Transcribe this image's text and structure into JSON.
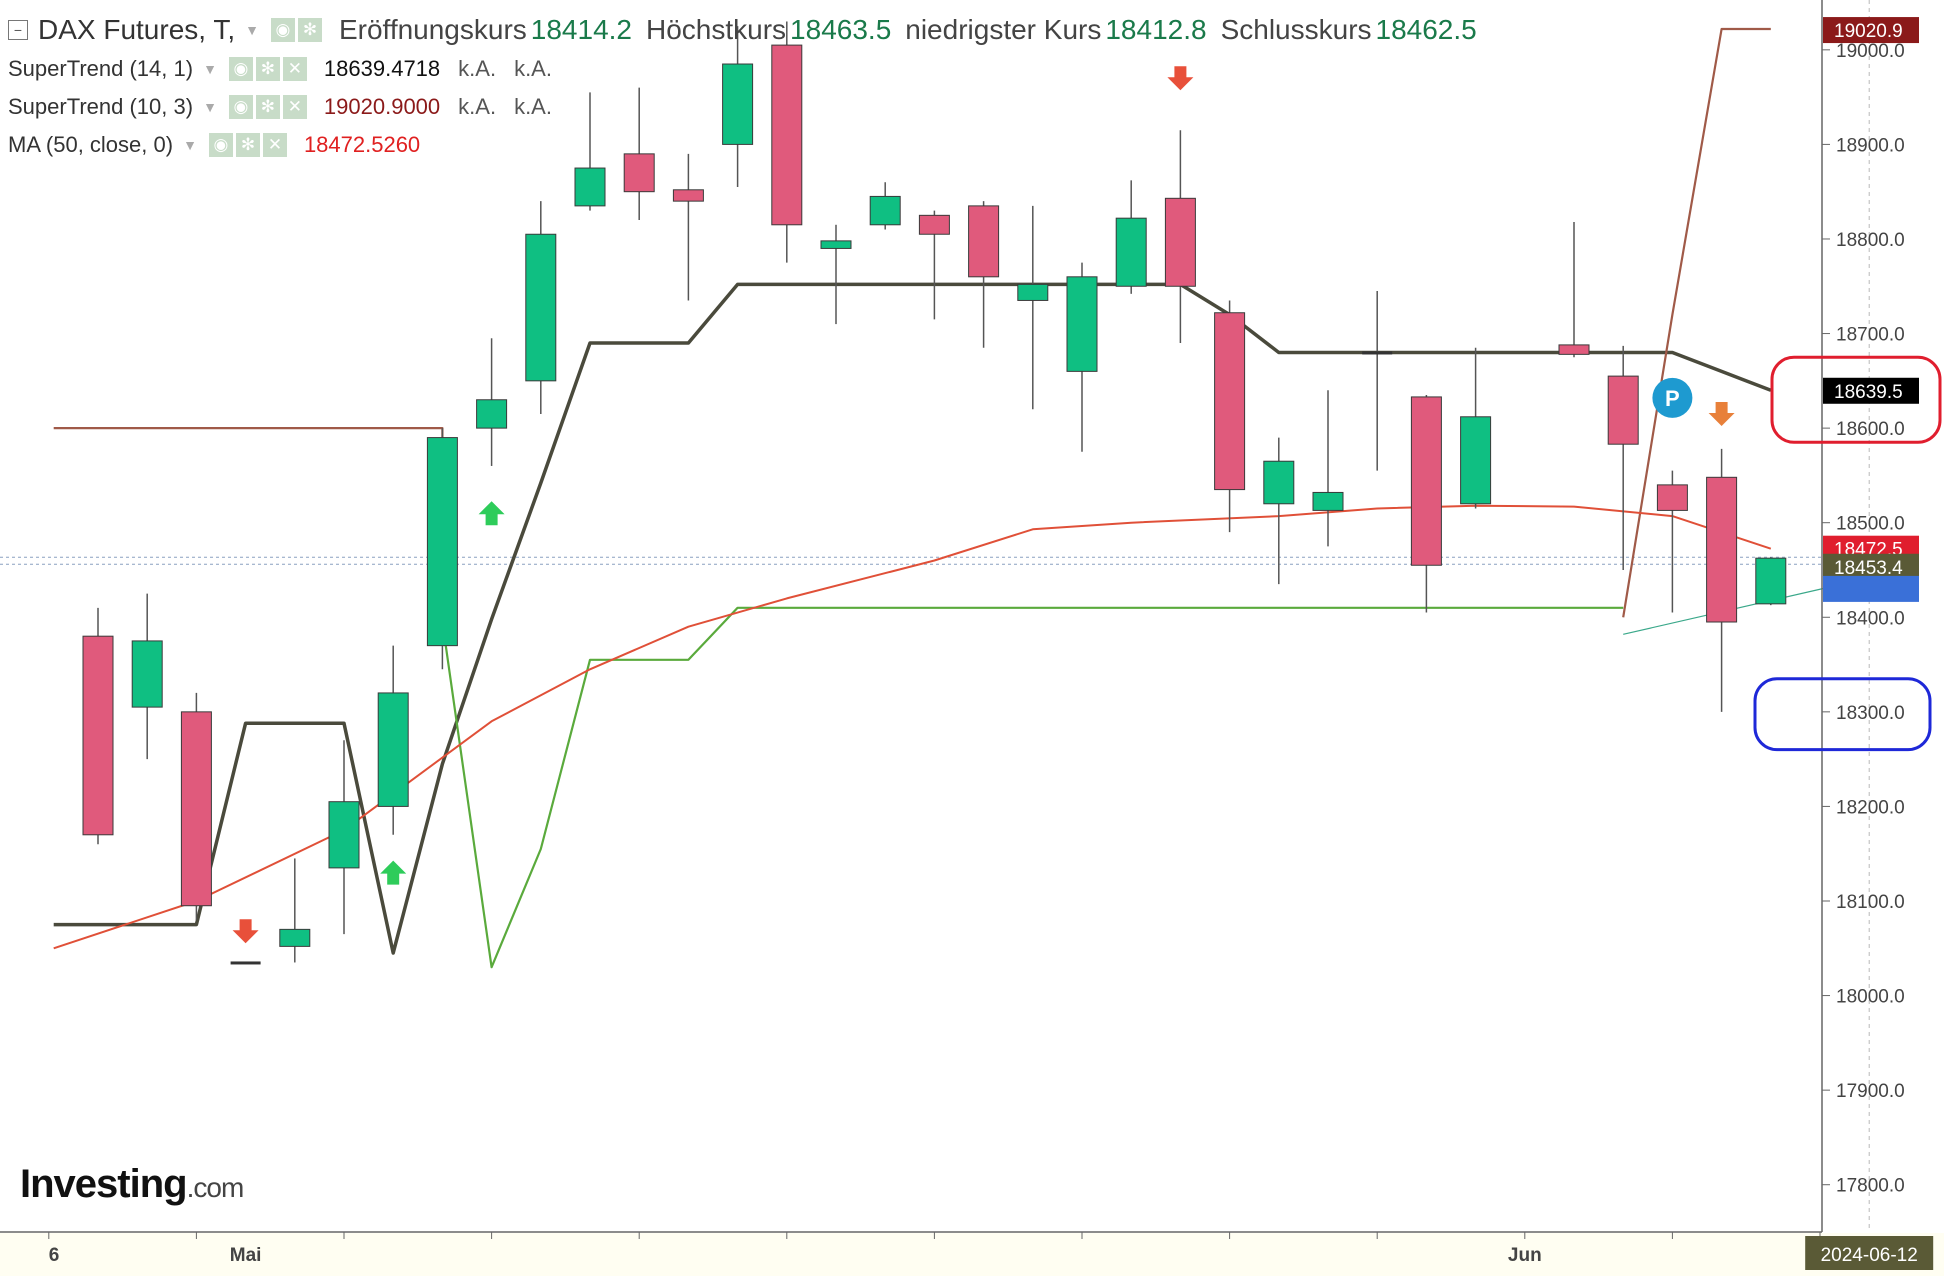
{
  "header": {
    "symbol": "DAX Futures, T,",
    "ohlc": [
      {
        "label": "Eröffnungskurs",
        "value": "18414.2"
      },
      {
        "label": "Höchstkurs",
        "value": "18463.5"
      },
      {
        "label": "niedrigster Kurs",
        "value": "18412.8"
      },
      {
        "label": "Schlusskurs",
        "value": "18462.5"
      }
    ]
  },
  "indicators": [
    {
      "name": "SuperTrend (14, 1)",
      "value": "18639.4718",
      "value_color": "#111111",
      "extra": [
        "k.A.",
        "k.A."
      ]
    },
    {
      "name": "SuperTrend (10, 3)",
      "value": "19020.9000",
      "value_color": "#8b1a1a",
      "extra": [
        "k.A.",
        "k.A."
      ]
    },
    {
      "name": "MA (50, close, 0)",
      "value": "18472.5260",
      "value_color": "#e02020",
      "extra": []
    }
  ],
  "logo": {
    "main": "Investing",
    "suffix": ".com"
  },
  "colors": {
    "up": "#0fbf82",
    "down": "#e05a7c",
    "wick": "#555555",
    "st14": "#4a4a3c",
    "st10_up": "#5aaa3c",
    "st10_down": "#a05a48",
    "ma": "#e05038",
    "annot_red": "#e01e2e",
    "annot_blue": "#1e28d8"
  },
  "chart_data": {
    "type": "candlestick",
    "title": "DAX Futures",
    "y_axis": {
      "min": 17750,
      "max": 19040,
      "position": "right",
      "ticks": [
        "17800.0",
        "17900.0",
        "18000.0",
        "18100.0",
        "18200.0",
        "18300.0",
        "18400.0",
        "18500.0",
        "18600.0",
        "18700.0",
        "18800.0",
        "18900.0",
        "19000.0"
      ]
    },
    "x_axis": {
      "labels": [
        {
          "index": -1,
          "text": "6"
        },
        {
          "index": 3,
          "text": "Mai"
        },
        {
          "index": 29,
          "text": "Jun"
        },
        {
          "index": 36,
          "text": "2024-06-12",
          "highlight": true
        }
      ]
    },
    "candles": [
      {
        "o": 18380,
        "h": 18410,
        "l": 18160,
        "c": 18170
      },
      {
        "o": 18305,
        "h": 18425,
        "l": 18250,
        "c": 18375
      },
      {
        "o": 18300,
        "h": 18320,
        "l": 18080,
        "c": 18095
      },
      {
        "o": 18035,
        "h": 18035,
        "l": 18035,
        "c": 18035
      },
      {
        "o": 18052,
        "h": 18145,
        "l": 18035,
        "c": 18070
      },
      {
        "o": 18135,
        "h": 18270,
        "l": 18065,
        "c": 18205
      },
      {
        "o": 18200,
        "h": 18370,
        "l": 18170,
        "c": 18320
      },
      {
        "o": 18370,
        "h": 18600,
        "l": 18345,
        "c": 18590
      },
      {
        "o": 18600,
        "h": 18695,
        "l": 18560,
        "c": 18630
      },
      {
        "o": 18650,
        "h": 18840,
        "l": 18615,
        "c": 18805
      },
      {
        "o": 18835,
        "h": 18955,
        "l": 18830,
        "c": 18875
      },
      {
        "o": 18890,
        "h": 18960,
        "l": 18820,
        "c": 18850
      },
      {
        "o": 18852,
        "h": 18890,
        "l": 18735,
        "c": 18840
      },
      {
        "o": 18900,
        "h": 19025,
        "l": 18855,
        "c": 18985
      },
      {
        "o": 19005,
        "h": 19030,
        "l": 18775,
        "c": 18815
      },
      {
        "o": 18790,
        "h": 18815,
        "l": 18710,
        "c": 18798
      },
      {
        "o": 18815,
        "h": 18860,
        "l": 18810,
        "c": 18845
      },
      {
        "o": 18825,
        "h": 18830,
        "l": 18715,
        "c": 18805
      },
      {
        "o": 18835,
        "h": 18840,
        "l": 18685,
        "c": 18760
      },
      {
        "o": 18735,
        "h": 18835,
        "l": 18620,
        "c": 18752
      },
      {
        "o": 18660,
        "h": 18775,
        "l": 18575,
        "c": 18760
      },
      {
        "o": 18750,
        "h": 18862,
        "l": 18742,
        "c": 18822
      },
      {
        "o": 18843,
        "h": 18915,
        "l": 18690,
        "c": 18750
      },
      {
        "o": 18722,
        "h": 18735,
        "l": 18490,
        "c": 18535
      },
      {
        "o": 18520,
        "h": 18590,
        "l": 18435,
        "c": 18565
      },
      {
        "o": 18513,
        "h": 18640,
        "l": 18475,
        "c": 18532
      },
      {
        "o": 18680,
        "h": 18745,
        "l": 18555,
        "c": 18680
      },
      {
        "o": 18633,
        "h": 18635,
        "l": 18405,
        "c": 18455
      },
      {
        "o": 18520,
        "h": 18685,
        "l": 18515,
        "c": 18612
      },
      {
        "o": 18688,
        "h": 18818,
        "l": 18675,
        "c": 18678
      },
      {
        "o": 18655,
        "h": 18687,
        "l": 18450,
        "c": 18583
      },
      {
        "o": 18540,
        "h": 18555,
        "l": 18405,
        "c": 18513
      },
      {
        "o": 18548,
        "h": 18578,
        "l": 18300,
        "c": 18395
      },
      {
        "o": 18414.2,
        "h": 18463.5,
        "l": 18412.8,
        "c": 18462.5
      }
    ],
    "candle_start_index": 0,
    "candle_indices": [
      0,
      1,
      2,
      3,
      4,
      5,
      6,
      7,
      8,
      9,
      10,
      11,
      12,
      13,
      14,
      15,
      16,
      17,
      18,
      19,
      20,
      21,
      22,
      23,
      24,
      25,
      26,
      27,
      28,
      30,
      31,
      32,
      33,
      34
    ],
    "series": [
      {
        "name": "SuperTrend (14, 1)",
        "segments": [
          [
            [
              -0.9,
              18075
            ],
            [
              1,
              18075
            ],
            [
              2,
              18075
            ],
            [
              3,
              18288
            ],
            [
              5,
              18288
            ],
            [
              6,
              18045
            ],
            [
              7,
              18245
            ],
            [
              8,
              18398
            ],
            [
              9,
              18542
            ],
            [
              10,
              18690
            ],
            [
              12,
              18690
            ],
            [
              13,
              18752
            ],
            [
              22,
              18752
            ],
            [
              23,
              18720
            ],
            [
              24,
              18680
            ],
            [
              32,
              18680
            ],
            [
              33,
              18660
            ],
            [
              34,
              18640
            ]
          ]
        ]
      },
      {
        "name": "SuperTrend (10, 3) up",
        "segments": [
          [
            [
              7,
              18395
            ],
            [
              8,
              18030
            ],
            [
              9,
              18155
            ],
            [
              10,
              18355
            ],
            [
              12,
              18355
            ],
            [
              13,
              18410
            ],
            [
              31,
              18410
            ]
          ]
        ]
      },
      {
        "name": "SuperTrend (10, 3) down",
        "segments": [
          [
            [
              -0.9,
              18600
            ],
            [
              7,
              18600
            ],
            [
              7,
              18590
            ]
          ],
          [
            [
              31,
              18400
            ],
            [
              32,
              18720
            ],
            [
              33,
              19022
            ],
            [
              34,
              19022
            ]
          ]
        ]
      },
      {
        "name": "MA (50, close, 0)",
        "segments": [
          [
            [
              -0.9,
              18050
            ],
            [
              2,
              18100
            ],
            [
              5,
              18175
            ],
            [
              8,
              18290
            ],
            [
              10,
              18345
            ],
            [
              12,
              18390
            ],
            [
              14,
              18420
            ],
            [
              17,
              18460
            ],
            [
              19,
              18493
            ],
            [
              21,
              18500
            ],
            [
              24,
              18507
            ],
            [
              26,
              18515
            ],
            [
              28,
              18518
            ],
            [
              30,
              18517
            ],
            [
              32,
              18507
            ],
            [
              34,
              18472.5
            ]
          ]
        ]
      },
      {
        "name": "trendline",
        "segments": [
          [
            [
              31,
              18382
            ],
            [
              35.2,
              18432
            ]
          ]
        ]
      }
    ],
    "signals": [
      {
        "index": 3,
        "direction": "down",
        "price": 18068
      },
      {
        "index": 6,
        "direction": "up",
        "price": 18130
      },
      {
        "index": 8,
        "direction": "up",
        "price": 18510
      },
      {
        "index": 22,
        "direction": "down",
        "price": 18970
      },
      {
        "index": 33,
        "direction": "down",
        "price": 18615
      }
    ],
    "pivot": {
      "index": 32,
      "price": 18632,
      "label": "P"
    },
    "price_labels": [
      {
        "value": 19020.9,
        "text": "19020.9",
        "bg": "#8b1a1a",
        "fg": "#ffffff"
      },
      {
        "value": 18639.5,
        "text": "18639.5",
        "bg": "#000000",
        "fg": "#ffffff"
      },
      {
        "value": 18472.5,
        "text": "18472.5",
        "bg": "#e01e2e",
        "fg": "#ffffff"
      },
      {
        "value": 18453.4,
        "text": "18453.4",
        "bg": "#5a5a36",
        "fg": "#ffffff"
      },
      {
        "value": 18430,
        "text": "",
        "bg": "#3a70d8",
        "fg": "#ffffff"
      }
    ],
    "reference_lines": [
      18463.5,
      18456
    ],
    "annotations": [
      {
        "shape": "rounded-rect",
        "color": "red",
        "y_from": 18585,
        "y_to": 18675
      },
      {
        "shape": "rounded-rect",
        "color": "blue",
        "y_from": 18260,
        "y_to": 18335
      }
    ]
  }
}
